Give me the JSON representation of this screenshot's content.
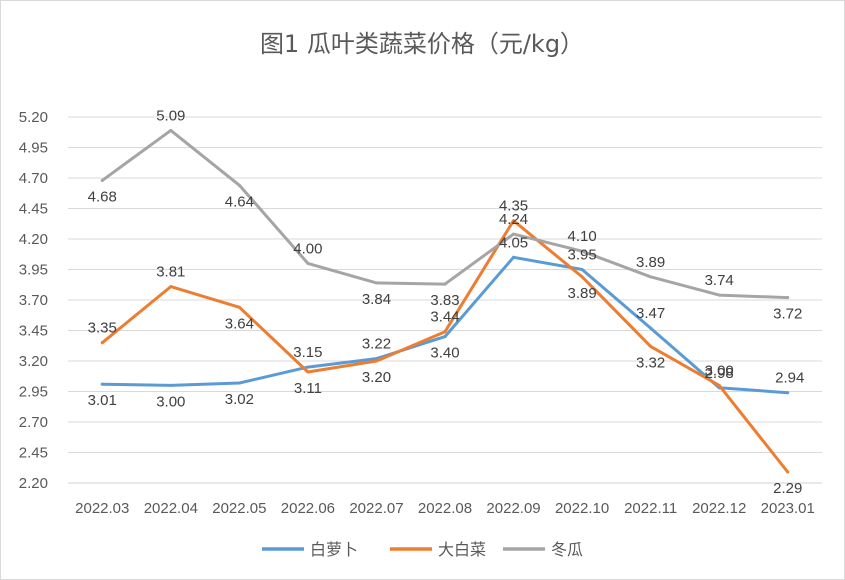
{
  "chart_data": {
    "type": "line",
    "title": "图1   瓜叶类蔬菜价格（元/kg）",
    "xlabel": "",
    "ylabel": "",
    "categories": [
      "2022.03",
      "2022.04",
      "2022.05",
      "2022.06",
      "2022.07",
      "2022.08",
      "2022.09",
      "2022.10",
      "2022.11",
      "2022.12",
      "2023.01"
    ],
    "ylim": [
      2.2,
      5.2
    ],
    "yticks": [
      "5.20",
      "4.95",
      "4.70",
      "4.45",
      "4.20",
      "3.95",
      "3.70",
      "3.45",
      "3.20",
      "2.95",
      "2.70",
      "2.45",
      "2.20"
    ],
    "grid": true,
    "legend_position": "bottom",
    "series": [
      {
        "name": "白萝卜",
        "color": "#5b9bd5",
        "values": [
          3.01,
          3.0,
          3.02,
          3.15,
          3.22,
          3.4,
          4.05,
          3.95,
          3.47,
          2.98,
          2.94
        ],
        "labels": [
          "3.01",
          "3.00",
          "3.02",
          "3.15",
          "3.22",
          "3.40",
          "4.05",
          "3.95",
          "3.47",
          "2.98",
          "2.94"
        ]
      },
      {
        "name": "大白菜",
        "color": "#ed7d31",
        "values": [
          3.35,
          3.81,
          3.64,
          3.11,
          3.2,
          3.44,
          4.35,
          3.89,
          3.32,
          3.0,
          2.29
        ],
        "labels": [
          "3.35",
          "3.81",
          "3.64",
          "3.11",
          "3.20",
          "3.44",
          "4.35",
          "3.89",
          "3.32",
          "3.00",
          "2.29"
        ]
      },
      {
        "name": "冬瓜",
        "color": "#a5a5a5",
        "values": [
          4.68,
          5.09,
          4.64,
          4.0,
          3.84,
          3.83,
          4.24,
          4.1,
          3.89,
          3.74,
          3.72
        ],
        "labels": [
          "4.68",
          "5.09",
          "4.64",
          "4.00",
          "3.84",
          "3.83",
          "4.24",
          "4.10",
          "3.89",
          "3.74",
          "3.72"
        ]
      }
    ]
  }
}
